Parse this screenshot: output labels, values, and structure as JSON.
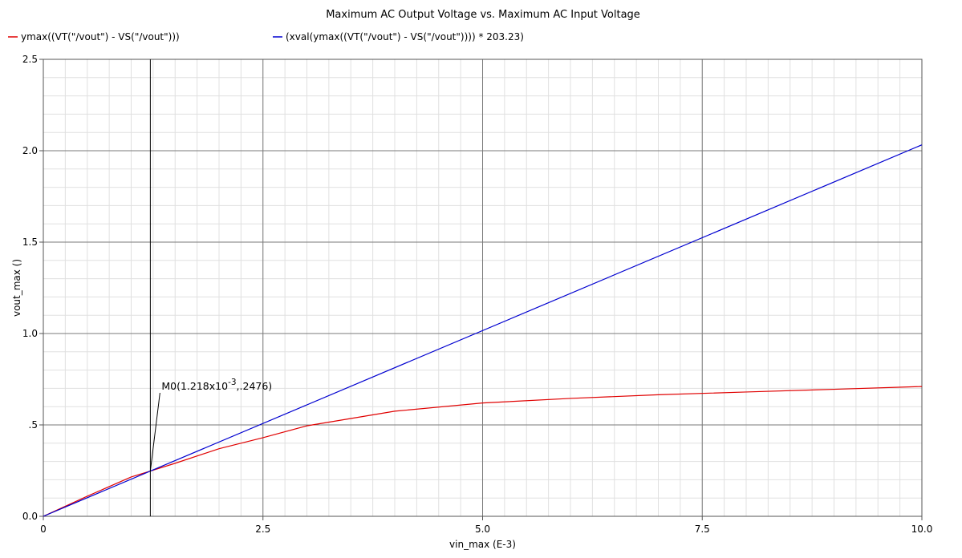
{
  "chart_data": {
    "type": "line",
    "title": "Maximum AC Output Voltage vs. Maximum AC Input Voltage",
    "xlabel": "vin_max (E-3)",
    "ylabel": "vout_max ()",
    "xlim": [
      0,
      10
    ],
    "ylim": [
      0,
      2.5
    ],
    "x_ticks": [
      {
        "value": 0,
        "label": "0"
      },
      {
        "value": 2.5,
        "label": "2.5"
      },
      {
        "value": 5,
        "label": "5.0"
      },
      {
        "value": 7.5,
        "label": "7.5"
      },
      {
        "value": 10,
        "label": "10.0"
      }
    ],
    "y_ticks": [
      {
        "value": 0,
        "label": "0.0"
      },
      {
        "value": 0.5,
        "label": ".5"
      },
      {
        "value": 1.0,
        "label": "1.0"
      },
      {
        "value": 1.5,
        "label": "1.5"
      },
      {
        "value": 2.0,
        "label": "2.0"
      },
      {
        "value": 2.5,
        "label": "2.5"
      }
    ],
    "grid": true,
    "legend_position": "top-left",
    "series": [
      {
        "name": "ymax((VT(\"/vout\") - VS(\"/vout\")))",
        "color": "#e00000",
        "x": [
          0,
          0.5,
          1.0,
          1.218,
          1.5,
          2.0,
          2.5,
          3.0,
          3.5,
          4.0,
          5.0,
          6.0,
          7.0,
          8.0,
          9.0,
          10.0
        ],
        "y": [
          0,
          0.11,
          0.215,
          0.2476,
          0.29,
          0.37,
          0.43,
          0.495,
          0.535,
          0.575,
          0.62,
          0.645,
          0.665,
          0.68,
          0.695,
          0.71
        ]
      },
      {
        "name": "(xval(ymax((VT(\"/vout\") - VS(\"/vout\")))) * 203.23)",
        "color": "#0000d0",
        "x": [
          0,
          10
        ],
        "y": [
          0,
          2.0323
        ]
      }
    ],
    "marker": {
      "name": "M0",
      "x": 1.218,
      "y": 0.2476,
      "label_prefix": "M0(1.218x10",
      "label_exp": "-3",
      "label_suffix": ",.2476)"
    }
  }
}
